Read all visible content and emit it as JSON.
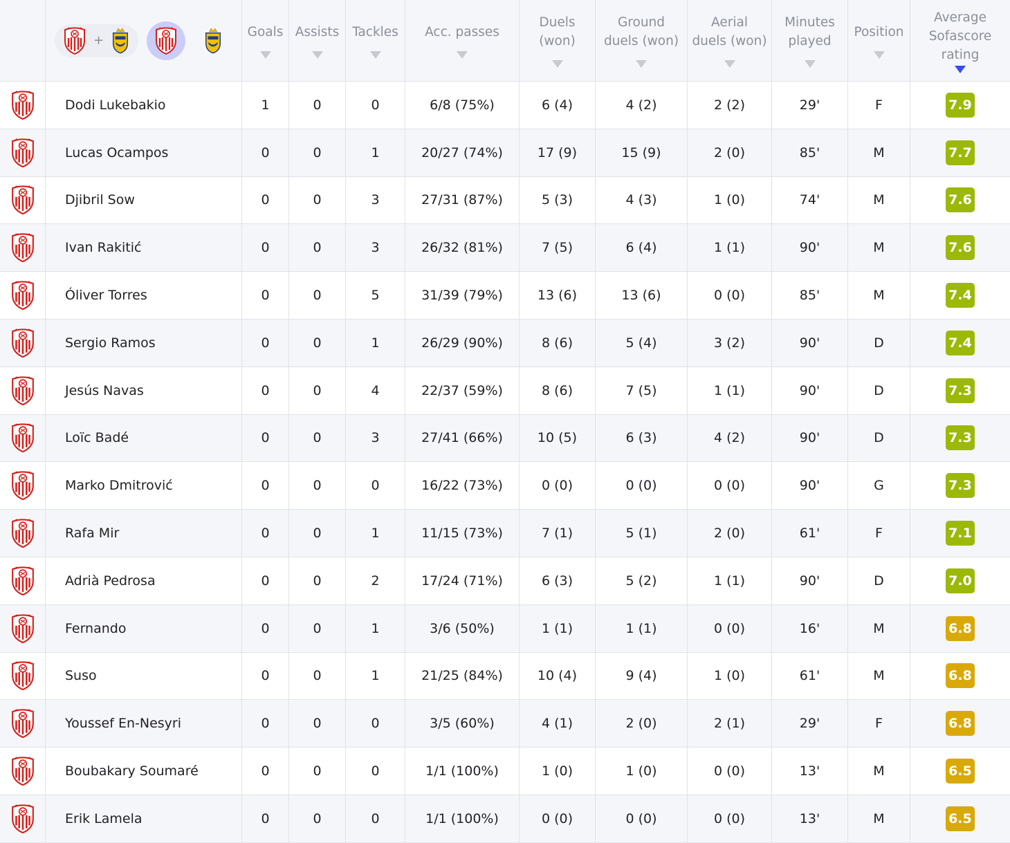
{
  "header": {
    "columns": [
      {
        "label": "Goals"
      },
      {
        "label": "Assists"
      },
      {
        "label": "Tackles"
      },
      {
        "label": "Acc. passes"
      },
      {
        "label": "Duels\n(won)"
      },
      {
        "label": "Ground\nduels (won)"
      },
      {
        "label": "Aerial\nduels (won)"
      },
      {
        "label": "Minutes\nplayed"
      },
      {
        "label": "Position"
      },
      {
        "label": "Average\nSofascore\nrating"
      }
    ],
    "team_selector": {
      "plus": "+",
      "active": "sevilla"
    },
    "sorted_by": "Average Sofascore rating"
  },
  "colors": {
    "rating_green": "#9cb808",
    "rating_yellow": "#d9a90a",
    "sort_arrow_active": "#3b4cf4",
    "sevilla_red": "#d6201c",
    "las_palmas_yellow": "#f2c100",
    "las_palmas_blue": "#1f3d8c"
  },
  "icons": {
    "team": "sevilla-crest-icon",
    "opponent": "las-palmas-crest-icon"
  },
  "players": [
    {
      "name": "Dodi Lukebakio",
      "goals": "1",
      "assists": "0",
      "tackles": "0",
      "passes": "6/8 (75%)",
      "duels": "6 (4)",
      "ground": "4 (2)",
      "aerial": "2 (2)",
      "minutes": "29'",
      "position": "F",
      "rating": "7.9",
      "rating_color": "green"
    },
    {
      "name": "Lucas Ocampos",
      "goals": "0",
      "assists": "0",
      "tackles": "1",
      "passes": "20/27 (74%)",
      "duels": "17 (9)",
      "ground": "15 (9)",
      "aerial": "2 (0)",
      "minutes": "85'",
      "position": "M",
      "rating": "7.7",
      "rating_color": "green"
    },
    {
      "name": "Djibril Sow",
      "goals": "0",
      "assists": "0",
      "tackles": "3",
      "passes": "27/31 (87%)",
      "duels": "5 (3)",
      "ground": "4 (3)",
      "aerial": "1 (0)",
      "minutes": "74'",
      "position": "M",
      "rating": "7.6",
      "rating_color": "green"
    },
    {
      "name": "Ivan Rakitić",
      "goals": "0",
      "assists": "0",
      "tackles": "3",
      "passes": "26/32 (81%)",
      "duels": "7 (5)",
      "ground": "6 (4)",
      "aerial": "1 (1)",
      "minutes": "90'",
      "position": "M",
      "rating": "7.6",
      "rating_color": "green"
    },
    {
      "name": "Óliver Torres",
      "goals": "0",
      "assists": "0",
      "tackles": "5",
      "passes": "31/39 (79%)",
      "duels": "13 (6)",
      "ground": "13 (6)",
      "aerial": "0 (0)",
      "minutes": "85'",
      "position": "M",
      "rating": "7.4",
      "rating_color": "green"
    },
    {
      "name": "Sergio Ramos",
      "goals": "0",
      "assists": "0",
      "tackles": "1",
      "passes": "26/29 (90%)",
      "duels": "8 (6)",
      "ground": "5 (4)",
      "aerial": "3 (2)",
      "minutes": "90'",
      "position": "D",
      "rating": "7.4",
      "rating_color": "green"
    },
    {
      "name": "Jesús Navas",
      "goals": "0",
      "assists": "0",
      "tackles": "4",
      "passes": "22/37 (59%)",
      "duels": "8 (6)",
      "ground": "7 (5)",
      "aerial": "1 (1)",
      "minutes": "90'",
      "position": "D",
      "rating": "7.3",
      "rating_color": "green"
    },
    {
      "name": "Loïc Badé",
      "goals": "0",
      "assists": "0",
      "tackles": "3",
      "passes": "27/41 (66%)",
      "duels": "10 (5)",
      "ground": "6 (3)",
      "aerial": "4 (2)",
      "minutes": "90'",
      "position": "D",
      "rating": "7.3",
      "rating_color": "green"
    },
    {
      "name": "Marko Dmitrović",
      "goals": "0",
      "assists": "0",
      "tackles": "0",
      "passes": "16/22 (73%)",
      "duels": "0 (0)",
      "ground": "0 (0)",
      "aerial": "0 (0)",
      "minutes": "90'",
      "position": "G",
      "rating": "7.3",
      "rating_color": "green"
    },
    {
      "name": "Rafa Mir",
      "goals": "0",
      "assists": "0",
      "tackles": "1",
      "passes": "11/15 (73%)",
      "duels": "7 (1)",
      "ground": "5 (1)",
      "aerial": "2 (0)",
      "minutes": "61'",
      "position": "F",
      "rating": "7.1",
      "rating_color": "green"
    },
    {
      "name": "Adrià Pedrosa",
      "goals": "0",
      "assists": "0",
      "tackles": "2",
      "passes": "17/24 (71%)",
      "duels": "6 (3)",
      "ground": "5 (2)",
      "aerial": "1 (1)",
      "minutes": "90'",
      "position": "D",
      "rating": "7.0",
      "rating_color": "green"
    },
    {
      "name": "Fernando",
      "goals": "0",
      "assists": "0",
      "tackles": "1",
      "passes": "3/6 (50%)",
      "duels": "1 (1)",
      "ground": "1 (1)",
      "aerial": "0 (0)",
      "minutes": "16'",
      "position": "M",
      "rating": "6.8",
      "rating_color": "yellow"
    },
    {
      "name": "Suso",
      "goals": "0",
      "assists": "0",
      "tackles": "1",
      "passes": "21/25 (84%)",
      "duels": "10 (4)",
      "ground": "9 (4)",
      "aerial": "1 (0)",
      "minutes": "61'",
      "position": "M",
      "rating": "6.8",
      "rating_color": "yellow"
    },
    {
      "name": "Youssef En-Nesyri",
      "goals": "0",
      "assists": "0",
      "tackles": "0",
      "passes": "3/5 (60%)",
      "duels": "4 (1)",
      "ground": "2 (0)",
      "aerial": "2 (1)",
      "minutes": "29'",
      "position": "F",
      "rating": "6.8",
      "rating_color": "yellow"
    },
    {
      "name": "Boubakary Soumaré",
      "goals": "0",
      "assists": "0",
      "tackles": "0",
      "passes": "1/1 (100%)",
      "duels": "1 (0)",
      "ground": "1 (0)",
      "aerial": "0 (0)",
      "minutes": "13'",
      "position": "M",
      "rating": "6.5",
      "rating_color": "yellow"
    },
    {
      "name": "Erik Lamela",
      "goals": "0",
      "assists": "0",
      "tackles": "0",
      "passes": "1/1 (100%)",
      "duels": "0 (0)",
      "ground": "0 (0)",
      "aerial": "0 (0)",
      "minutes": "13'",
      "position": "M",
      "rating": "6.5",
      "rating_color": "yellow"
    }
  ]
}
